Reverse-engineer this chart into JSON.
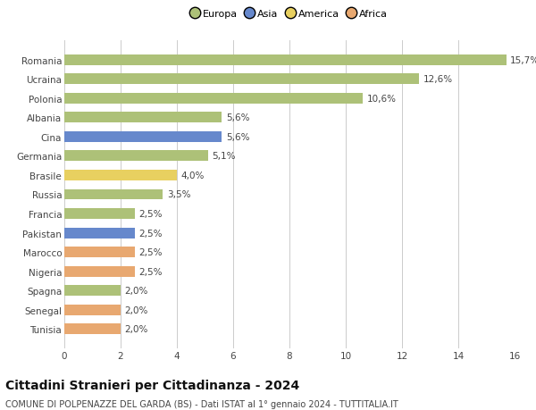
{
  "categories": [
    "Romania",
    "Ucraina",
    "Polonia",
    "Albania",
    "Cina",
    "Germania",
    "Brasile",
    "Russia",
    "Francia",
    "Pakistan",
    "Marocco",
    "Nigeria",
    "Spagna",
    "Senegal",
    "Tunisia"
  ],
  "values": [
    15.7,
    12.6,
    10.6,
    5.6,
    5.6,
    5.1,
    4.0,
    3.5,
    2.5,
    2.5,
    2.5,
    2.5,
    2.0,
    2.0,
    2.0
  ],
  "continents": [
    "Europa",
    "Europa",
    "Europa",
    "Europa",
    "Asia",
    "Europa",
    "America",
    "Europa",
    "Europa",
    "Asia",
    "Africa",
    "Africa",
    "Europa",
    "Africa",
    "Africa"
  ],
  "labels": [
    "15,7%",
    "12,6%",
    "10,6%",
    "5,6%",
    "5,6%",
    "5,1%",
    "4,0%",
    "3,5%",
    "2,5%",
    "2,5%",
    "2,5%",
    "2,5%",
    "2,0%",
    "2,0%",
    "2,0%"
  ],
  "colors": {
    "Europa": "#adc178",
    "Asia": "#6688cc",
    "America": "#e8d060",
    "Africa": "#e8a870"
  },
  "legend_items": [
    "Europa",
    "Asia",
    "America",
    "Africa"
  ],
  "legend_colors": [
    "#adc178",
    "#6688cc",
    "#e8d060",
    "#e8a870"
  ],
  "title": "Cittadini Stranieri per Cittadinanza - 2024",
  "subtitle": "COMUNE DI POLPENAZZE DEL GARDA (BS) - Dati ISTAT al 1° gennaio 2024 - TUTTITALIA.IT",
  "xlim": [
    0,
    16
  ],
  "xticks": [
    0,
    2,
    4,
    6,
    8,
    10,
    12,
    14,
    16
  ],
  "background_color": "#ffffff",
  "grid_color": "#cccccc",
  "bar_height": 0.55,
  "label_fontsize": 7.5,
  "tick_fontsize": 7.5,
  "title_fontsize": 10,
  "subtitle_fontsize": 7,
  "legend_fontsize": 8
}
